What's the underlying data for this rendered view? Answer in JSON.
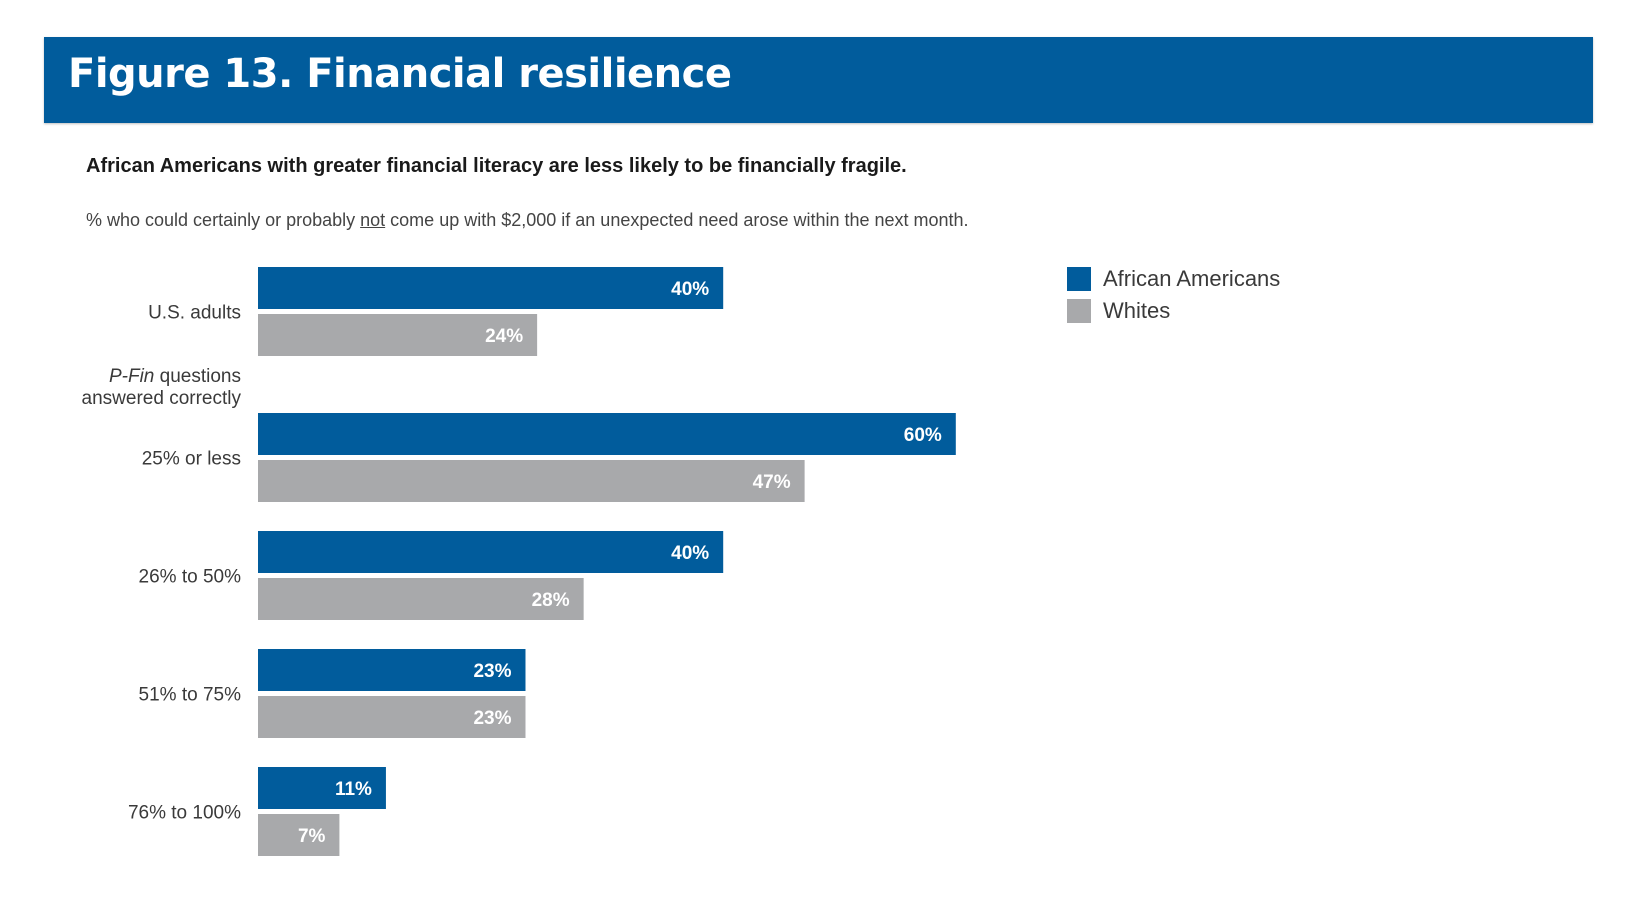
{
  "header": {
    "title": "Figure 13. Financial resilience"
  },
  "subtitle": "African Americans with greater financial literacy are less likely to be financially fragile.",
  "note": {
    "before": "% who could certainly or probably ",
    "underlined": "not",
    "after": " come up with $2,000 if an unexpected need arose within the next month."
  },
  "group_heading": {
    "italic": "P-Fin",
    "line1_rest": " questions",
    "line2": "answered correctly"
  },
  "colors": {
    "african_americans": "#015c9c",
    "whites": "#a8a9ab",
    "banner": "#015c9c"
  },
  "chart_data": {
    "type": "bar",
    "orientation": "horizontal",
    "categories": [
      "U.S. adults",
      "25% or less",
      "26% to 50%",
      "51% to 75%",
      "76% to 100%"
    ],
    "series": [
      {
        "name": "African Americans",
        "values": [
          40,
          60,
          40,
          23,
          11
        ],
        "labels": [
          "40%",
          "60%",
          "40%",
          "23%",
          "11%"
        ]
      },
      {
        "name": "Whites",
        "values": [
          24,
          47,
          28,
          23,
          7
        ],
        "labels": [
          "24%",
          "47%",
          "28%",
          "23%",
          "7%"
        ]
      }
    ],
    "title": "Figure 13. Financial resilience",
    "legend": {
      "position": "top-right"
    },
    "grid": false,
    "xlim": [
      0,
      100
    ]
  }
}
